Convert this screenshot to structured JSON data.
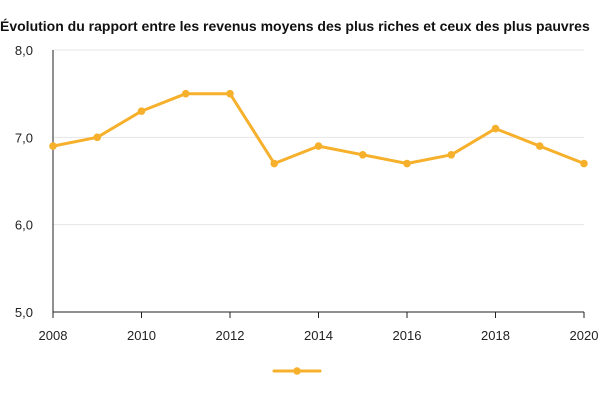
{
  "chart_data": {
    "type": "line",
    "title": "Évolution du rapport entre les revenus moyens des plus riches et ceux des plus pauvres",
    "xlabel": "",
    "ylabel": "",
    "ylim": [
      5.0,
      8.0
    ],
    "xlim": [
      2008,
      2020
    ],
    "x_ticks": [
      "2008",
      "2010",
      "2012",
      "2014",
      "2016",
      "2018",
      "2020"
    ],
    "y_ticks": [
      "5,0",
      "6,0",
      "7,0",
      "8,0"
    ],
    "grid": "horizontal",
    "legend": "bottom-center",
    "series": [
      {
        "color": "#F6B02C",
        "x": [
          2008,
          2009,
          2010,
          2011,
          2012,
          2013,
          2014,
          2015,
          2016,
          2017,
          2018,
          2019,
          2020
        ],
        "values": [
          6.9,
          7.0,
          7.3,
          7.5,
          7.5,
          6.7,
          6.9,
          6.8,
          6.7,
          6.8,
          7.1,
          6.9,
          6.7
        ]
      }
    ]
  }
}
